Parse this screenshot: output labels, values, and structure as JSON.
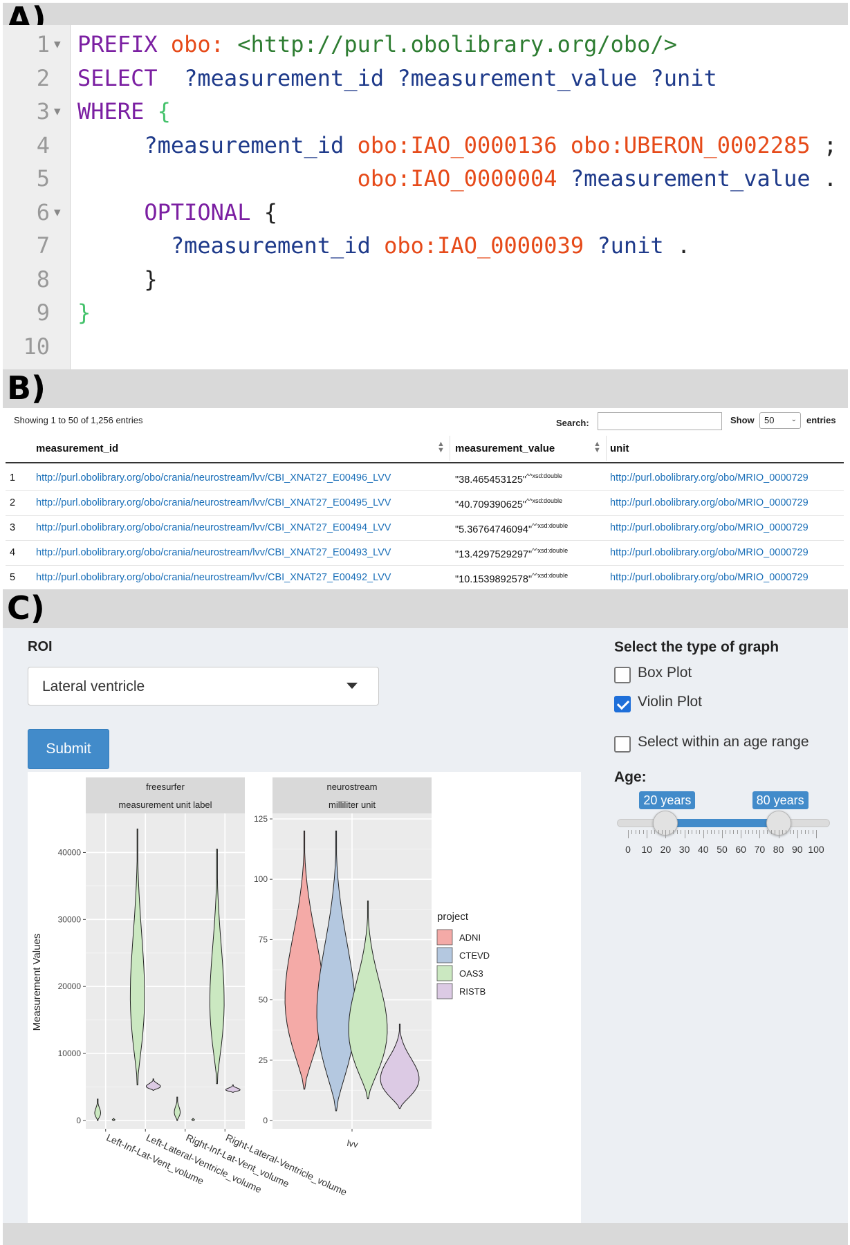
{
  "panels": {
    "a": "A)",
    "b": "B)",
    "c": "C)"
  },
  "code": {
    "lines": [
      {
        "n": "1",
        "fold": true,
        "tokens": [
          {
            "t": "PREFIX",
            "c": "kw"
          },
          {
            "t": " ",
            "c": "plain"
          },
          {
            "t": "obo:",
            "c": "pfx"
          },
          {
            "t": " ",
            "c": "plain"
          },
          {
            "t": "<http://purl.obolibrary.org/obo/>",
            "c": "iri"
          }
        ]
      },
      {
        "n": "2",
        "fold": false,
        "tokens": [
          {
            "t": "SELECT",
            "c": "kw"
          },
          {
            "t": "  ?measurement_id ?measurement_value ?unit",
            "c": "var"
          }
        ]
      },
      {
        "n": "3",
        "fold": true,
        "tokens": [
          {
            "t": "WHERE",
            "c": "kw"
          },
          {
            "t": " ",
            "c": "plain"
          },
          {
            "t": "{",
            "c": "brace-g"
          }
        ]
      },
      {
        "n": "4",
        "fold": false,
        "tokens": [
          {
            "t": "     ?measurement_id",
            "c": "var"
          },
          {
            "t": " ",
            "c": "plain"
          },
          {
            "t": "obo:IAO_0000136",
            "c": "pfx"
          },
          {
            "t": " ",
            "c": "plain"
          },
          {
            "t": "obo:UBERON_0002285",
            "c": "pfx"
          },
          {
            "t": " ;",
            "c": "plain"
          }
        ]
      },
      {
        "n": "5",
        "fold": false,
        "tokens": [
          {
            "t": "                     ",
            "c": "plain"
          },
          {
            "t": "obo:IAO_0000004",
            "c": "pfx"
          },
          {
            "t": " ",
            "c": "plain"
          },
          {
            "t": "?measurement_value",
            "c": "var"
          },
          {
            "t": " .",
            "c": "plain"
          }
        ]
      },
      {
        "n": "6",
        "fold": true,
        "tokens": [
          {
            "t": "     OPTIONAL",
            "c": "kw"
          },
          {
            "t": " {",
            "c": "plain"
          }
        ]
      },
      {
        "n": "7",
        "fold": false,
        "tokens": [
          {
            "t": "       ?measurement_id",
            "c": "var"
          },
          {
            "t": " ",
            "c": "plain"
          },
          {
            "t": "obo:IAO_0000039",
            "c": "pfx"
          },
          {
            "t": " ",
            "c": "plain"
          },
          {
            "t": "?unit",
            "c": "var"
          },
          {
            "t": " .",
            "c": "plain"
          }
        ]
      },
      {
        "n": "8",
        "fold": false,
        "tokens": [
          {
            "t": "     }",
            "c": "plain"
          }
        ]
      },
      {
        "n": "9",
        "fold": false,
        "tokens": [
          {
            "t": "}",
            "c": "brace-g"
          }
        ]
      },
      {
        "n": "10",
        "fold": false,
        "tokens": []
      }
    ]
  },
  "table": {
    "info": "Showing 1 to 50 of 1,256 entries",
    "search_label": "Search:",
    "search_value": "",
    "show_label": "Show",
    "show_value": "50",
    "entries_label": "entries",
    "headers": [
      "measurement_id",
      "measurement_value",
      "unit"
    ],
    "rows": [
      {
        "idx": "1",
        "id": "http://purl.obolibrary.org/obo/crania/neurostream/lvv/CBI_XNAT27_E00496_LVV",
        "value": "\"38.465453125\"",
        "type": "^^xsd:double",
        "unit": "http://purl.obolibrary.org/obo/MRIO_0000729"
      },
      {
        "idx": "2",
        "id": "http://purl.obolibrary.org/obo/crania/neurostream/lvv/CBI_XNAT27_E00495_LVV",
        "value": "\"40.709390625\"",
        "type": "^^xsd:double",
        "unit": "http://purl.obolibrary.org/obo/MRIO_0000729"
      },
      {
        "idx": "3",
        "id": "http://purl.obolibrary.org/obo/crania/neurostream/lvv/CBI_XNAT27_E00494_LVV",
        "value": "\"5.36764746094\"",
        "type": "^^xsd:double",
        "unit": "http://purl.obolibrary.org/obo/MRIO_0000729"
      },
      {
        "idx": "4",
        "id": "http://purl.obolibrary.org/obo/crania/neurostream/lvv/CBI_XNAT27_E00493_LVV",
        "value": "\"13.4297529297\"",
        "type": "^^xsd:double",
        "unit": "http://purl.obolibrary.org/obo/MRIO_0000729"
      },
      {
        "idx": "5",
        "id": "http://purl.obolibrary.org/obo/crania/neurostream/lvv/CBI_XNAT27_E00492_LVV",
        "value": "\"10.1539892578\"",
        "type": "^^xsd:double",
        "unit": "http://purl.obolibrary.org/obo/MRIO_0000729"
      }
    ]
  },
  "form": {
    "roi_label": "ROI",
    "roi_value": "Lateral ventricle",
    "submit_label": "Submit",
    "graph_type_label": "Select the type of graph",
    "box_plot_label": "Box Plot",
    "box_plot_checked": false,
    "violin_plot_label": "Violin Plot",
    "violin_plot_checked": true,
    "age_range_label": "Select within an age range",
    "age_range_checked": false,
    "age_label": "Age:",
    "age_min_label": "20 years",
    "age_max_label": "80 years",
    "age_min": 20,
    "age_max": 80,
    "age_scale": [
      "0",
      "10",
      "20",
      "30",
      "40",
      "50",
      "60",
      "70",
      "80",
      "90",
      "100"
    ]
  },
  "colors": {
    "ADNI": "#f4aaa7",
    "CTEVD": "#b4c8e0",
    "OAS3": "#cbe8c1",
    "RISTB": "#dccae4",
    "accent": "#428bca"
  },
  "chart_data": {
    "type": "violin",
    "ylabel": "Measurement Values",
    "legend_title": "project",
    "legend": [
      "ADNI",
      "CTEVD",
      "OAS3",
      "RISTB"
    ],
    "legend_position": "right",
    "facets": [
      {
        "strip": [
          "freesurfer",
          "measurement unit label"
        ],
        "ylim": [
          0,
          45000
        ],
        "yticks": [
          0,
          10000,
          20000,
          30000,
          40000
        ],
        "ytick_labels": [
          "0",
          "10000",
          "20000",
          "30000",
          "40000"
        ],
        "categories": [
          "Left-Inf-Lat-Vent_volume",
          "Left-Lateral-Ventricle_volume",
          "Right-Inf-Lat-Vent_volume",
          "Right-Lateral-Ventricle_volume"
        ],
        "violins": [
          {
            "category": "Left-Inf-Lat-Vent_volume",
            "project": "OAS3",
            "min": 0,
            "max": 3200,
            "widest": 600,
            "offset": -1
          },
          {
            "category": "Left-Inf-Lat-Vent_volume",
            "project": "OAS3",
            "min": 0,
            "max": 300,
            "widest": 100,
            "offset": 1
          },
          {
            "category": "Left-Lateral-Ventricle_volume",
            "project": "OAS3",
            "min": 5300,
            "max": 43500,
            "widest": 12000,
            "offset": -1
          },
          {
            "category": "Left-Lateral-Ventricle_volume",
            "project": "RISTB",
            "min": 4500,
            "max": 6200,
            "widest": 5400,
            "offset": 1
          },
          {
            "category": "Right-Inf-Lat-Vent_volume",
            "project": "OAS3",
            "min": 0,
            "max": 3500,
            "widest": 600,
            "offset": -1
          },
          {
            "category": "Right-Inf-Lat-Vent_volume",
            "project": "OAS3",
            "min": 0,
            "max": 300,
            "widest": 100,
            "offset": 1
          },
          {
            "category": "Right-Lateral-Ventricle_volume",
            "project": "OAS3",
            "min": 5500,
            "max": 40500,
            "widest": 11500,
            "offset": -1
          },
          {
            "category": "Right-Lateral-Ventricle_volume",
            "project": "RISTB",
            "min": 4200,
            "max": 5300,
            "widest": 4800,
            "offset": 1
          }
        ]
      },
      {
        "strip": [
          "neurostream",
          "milliliter unit"
        ],
        "ylim": [
          0,
          125
        ],
        "yticks": [
          0,
          25,
          50,
          75,
          100,
          125
        ],
        "ytick_labels": [
          "0",
          "25",
          "50",
          "75",
          "100",
          "125"
        ],
        "categories": [
          "lvv"
        ],
        "violins": [
          {
            "category": "lvv",
            "project": "ADNI",
            "min": 13,
            "max": 120,
            "widest": 35
          },
          {
            "category": "lvv",
            "project": "CTEVD",
            "min": 4,
            "max": 120,
            "widest": 18
          },
          {
            "category": "lvv",
            "project": "OAS3",
            "min": 9,
            "max": 91,
            "widest": 30
          },
          {
            "category": "lvv",
            "project": "RISTB",
            "min": 5,
            "max": 40,
            "widest": 15
          }
        ]
      }
    ]
  }
}
